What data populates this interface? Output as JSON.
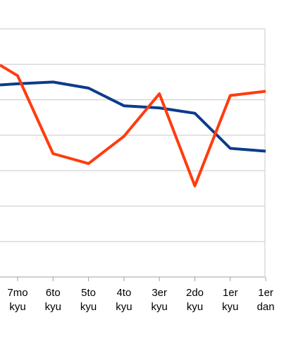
{
  "chart_data": {
    "type": "line",
    "categories": [
      [
        "7mo",
        "kyu"
      ],
      [
        "6to",
        "kyu"
      ],
      [
        "5to",
        "kyu"
      ],
      [
        "4to",
        "kyu"
      ],
      [
        "3er",
        "kyu"
      ],
      [
        "2do",
        "kyu"
      ],
      [
        "1er",
        "kyu"
      ],
      [
        "1er",
        "dan"
      ]
    ],
    "ylim": [
      0,
      7
    ],
    "grid": true,
    "series": [
      {
        "color": "#0b3c8c",
        "values": [
          5.45,
          5.5,
          5.33,
          4.83,
          4.77,
          4.62,
          3.63,
          3.55
        ],
        "left_edge_value": 5.42
      },
      {
        "color": "#ff3c0f",
        "values": [
          5.68,
          3.48,
          3.2,
          3.97,
          5.17,
          2.57,
          5.12,
          5.24
        ],
        "left_edge_value": 5.98
      }
    ]
  }
}
